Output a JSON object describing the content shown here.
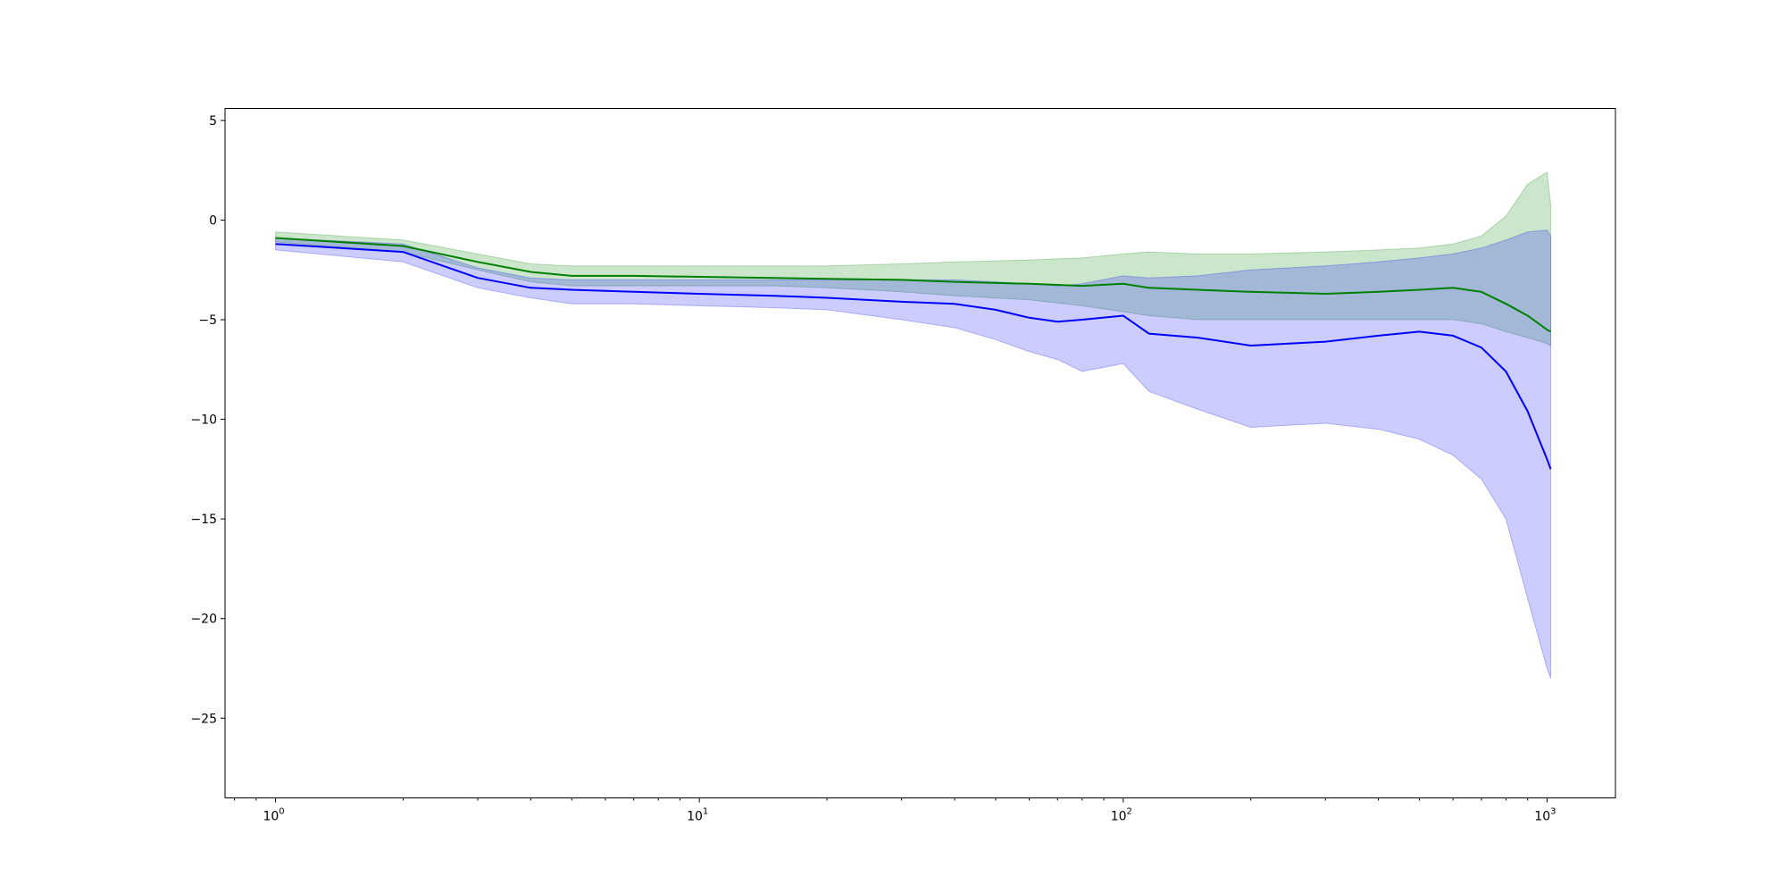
{
  "chart_data": {
    "type": "line",
    "title": "",
    "xlabel": "",
    "ylabel": "",
    "xscale": "log",
    "xlim": [
      0.76,
      1450
    ],
    "ylim": [
      -29,
      5.6
    ],
    "grid": false,
    "x_ticks": [
      {
        "value": 1,
        "base": "10",
        "exp": "0"
      },
      {
        "value": 10,
        "base": "10",
        "exp": "1"
      },
      {
        "value": 100,
        "base": "10",
        "exp": "2"
      },
      {
        "value": 1000,
        "base": "10",
        "exp": "3"
      }
    ],
    "y_ticks": [
      {
        "value": 5,
        "label": "5"
      },
      {
        "value": 0,
        "label": "0"
      },
      {
        "value": -5,
        "label": "−5"
      },
      {
        "value": -10,
        "label": "−10"
      },
      {
        "value": -15,
        "label": "−15"
      },
      {
        "value": -20,
        "label": "−20"
      },
      {
        "value": -25,
        "label": "−25"
      }
    ],
    "series": [
      {
        "color": "#008000",
        "band_color": "#008000",
        "x": [
          1,
          2,
          3,
          4,
          5,
          7,
          10,
          15,
          20,
          30,
          40,
          60,
          80,
          100,
          115,
          150,
          200,
          300,
          400,
          500,
          600,
          700,
          800,
          900,
          1000,
          1020
        ],
        "mean": [
          -0.9,
          -1.3,
          -2.1,
          -2.6,
          -2.8,
          -2.8,
          -2.85,
          -2.9,
          -2.95,
          -3.0,
          -3.1,
          -3.2,
          -3.3,
          -3.2,
          -3.4,
          -3.5,
          -3.6,
          -3.7,
          -3.6,
          -3.5,
          -3.4,
          -3.6,
          -4.2,
          -4.8,
          -5.5,
          -5.6
        ],
        "lower": [
          -1.1,
          -1.6,
          -2.5,
          -3.1,
          -3.3,
          -3.3,
          -3.3,
          -3.3,
          -3.4,
          -3.6,
          -3.8,
          -4.0,
          -4.3,
          -4.6,
          -4.8,
          -5.0,
          -5.0,
          -5.0,
          -5.0,
          -5.0,
          -5.0,
          -5.2,
          -5.6,
          -5.9,
          -6.2,
          -6.3
        ],
        "upper": [
          -0.6,
          -1.0,
          -1.7,
          -2.2,
          -2.3,
          -2.3,
          -2.3,
          -2.3,
          -2.3,
          -2.2,
          -2.1,
          -2.0,
          -1.9,
          -1.7,
          -1.6,
          -1.7,
          -1.7,
          -1.6,
          -1.5,
          -1.4,
          -1.2,
          -0.8,
          0.2,
          1.8,
          2.4,
          0.8
        ]
      },
      {
        "color": "#0000ff",
        "band_color": "#0000ff",
        "x": [
          1,
          2,
          3,
          4,
          5,
          7,
          10,
          15,
          20,
          30,
          40,
          50,
          60,
          70,
          80,
          100,
          115,
          150,
          200,
          300,
          400,
          500,
          600,
          700,
          800,
          900,
          1000,
          1020
        ],
        "mean": [
          -1.2,
          -1.6,
          -2.9,
          -3.4,
          -3.5,
          -3.6,
          -3.7,
          -3.8,
          -3.9,
          -4.1,
          -4.2,
          -4.5,
          -4.9,
          -5.1,
          -5.0,
          -4.8,
          -5.7,
          -5.9,
          -6.3,
          -6.1,
          -5.8,
          -5.6,
          -5.8,
          -6.4,
          -7.6,
          -9.6,
          -12.0,
          -12.5
        ],
        "lower": [
          -1.5,
          -2.1,
          -3.4,
          -3.9,
          -4.2,
          -4.2,
          -4.3,
          -4.4,
          -4.5,
          -5.0,
          -5.4,
          -6.0,
          -6.6,
          -7.0,
          -7.6,
          -7.2,
          -8.6,
          -9.5,
          -10.4,
          -10.2,
          -10.5,
          -11.0,
          -11.8,
          -13.0,
          -15.0,
          -19.0,
          -22.5,
          -23.0
        ],
        "upper": [
          -0.9,
          -1.2,
          -2.4,
          -2.9,
          -3.0,
          -3.0,
          -3.0,
          -3.0,
          -3.0,
          -3.0,
          -3.0,
          -3.1,
          -3.2,
          -3.3,
          -3.2,
          -2.8,
          -2.9,
          -2.8,
          -2.5,
          -2.3,
          -2.1,
          -1.9,
          -1.7,
          -1.4,
          -1.0,
          -0.6,
          -0.5,
          -0.8
        ]
      }
    ]
  }
}
